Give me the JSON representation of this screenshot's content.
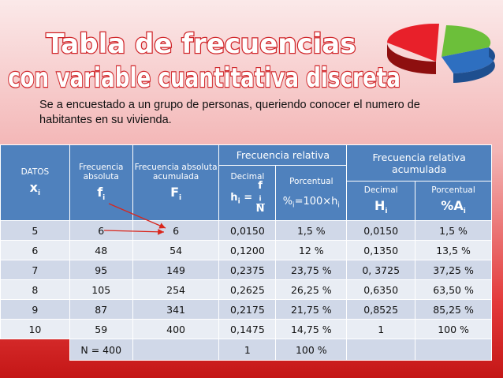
{
  "title": [
    "Tabla de frecuencias",
    "con variable cuantitativa discreta"
  ],
  "intro": "Se a encuestado a un grupo de personas, queriendo conocer el numero de habitantes en su vivienda.",
  "table": {
    "headers": {
      "datos": {
        "label": "DATOS",
        "symbol": "x",
        "sub": "i"
      },
      "absoluta": {
        "label": "Frecuencia absoluta",
        "symbol": "f",
        "sub": "i"
      },
      "acumulada": {
        "label": "Frecuencia absoluta acumulada",
        "symbol": "F",
        "sub": "i"
      },
      "relativa": "Frecuencia relativa",
      "relativa_acumulada": "Frecuencia relativa acumulada",
      "decimal": {
        "label": "Decimal",
        "h": "h",
        "hsub": "i",
        "eq": "=",
        "f": "f",
        "fsub": "i",
        "n": "N"
      },
      "porcentual": {
        "label": "Porcentual",
        "p": "%",
        "psub": "i",
        "rest": "=100×h",
        "restsub": "i"
      },
      "decimal_acum": {
        "label": "Decimal",
        "symbol": "H",
        "sub": "i"
      },
      "porcentual_acum": {
        "label": "Porcentual",
        "symbol": "%A",
        "sub": "i"
      }
    },
    "rows": [
      [
        "5",
        "6",
        "6",
        "0,0150",
        "1,5 %",
        "0,0150",
        "1,5 %"
      ],
      [
        "6",
        "48",
        "54",
        "0,1200",
        "12 %",
        "0,1350",
        "13,5 %"
      ],
      [
        "7",
        "95",
        "149",
        "0,2375",
        "23,75 %",
        "0, 3725",
        "37,25 %"
      ],
      [
        "8",
        "105",
        "254",
        "0,2625",
        "26,25 %",
        "0,6350",
        "63,50 %"
      ],
      [
        "9",
        "87",
        "341",
        "0,2175",
        "21,75 %",
        "0,8525",
        "85,25 %"
      ],
      [
        "10",
        "59",
        "400",
        "0,1475",
        "14,75 %",
        "1",
        "100 %"
      ]
    ],
    "footer": {
      "n": "N = 400",
      "decimal": "1",
      "porcentual": "100 %"
    }
  }
}
